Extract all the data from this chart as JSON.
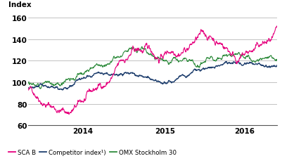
{
  "ylabel": "Index",
  "ylim": [
    60,
    165
  ],
  "yticks": [
    60,
    80,
    100,
    120,
    140,
    160
  ],
  "xtick_labels": [
    "2014",
    "2015",
    "2016"
  ],
  "xtick_positions": [
    0.22,
    0.55,
    0.87
  ],
  "xlim": [
    0,
    1
  ],
  "line_colors": {
    "sca": "#e6007e",
    "competitor": "#1f3f6e",
    "omx": "#2e8b3c"
  },
  "line_widths": {
    "sca": 0.8,
    "competitor": 1.0,
    "omx": 0.8
  },
  "legend_labels": [
    "SCA B",
    "Competitor index¹)",
    "OMX Stockholm 30"
  ],
  "legend_colors": [
    "#e6007e",
    "#1f3f6e",
    "#2e8b3c"
  ],
  "background_color": "#ffffff",
  "n_points": 900,
  "seed": 42
}
